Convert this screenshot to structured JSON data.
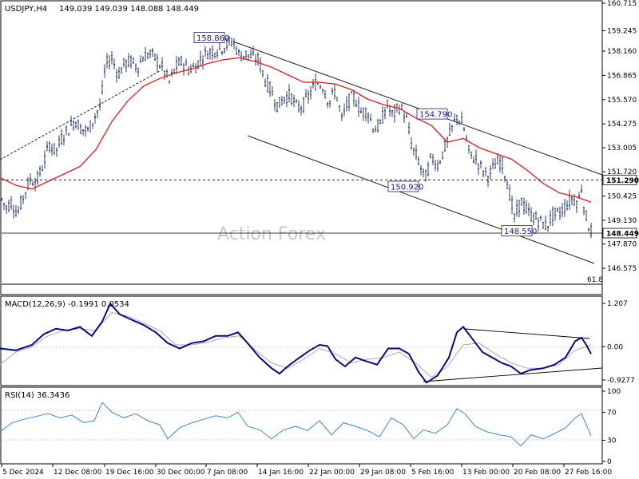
{
  "header": {
    "symbol": "USDJPY,H4",
    "ohlc": "149.039 149.039 148.088 148.449"
  },
  "watermark": "Action Forex",
  "colors": {
    "candle": "#2e3f6e",
    "ma": "#dc1e1e",
    "channel": "#222222",
    "macd": "#0a0a7a",
    "signal": "#a8a8b4",
    "rsi": "#3a86d8",
    "label_bg": "#ffffff",
    "price_tag_bg": "#ffffff"
  },
  "chart_data": [
    {
      "type": "candlestick",
      "title": "USDJPY,H4",
      "ylim": [
        146.575,
        160.715
      ],
      "y_ticks": [
        "160.715",
        "159.245",
        "158.160",
        "156.865",
        "155.570",
        "154.275",
        "153.005",
        "151.720",
        "150.425",
        "149.130",
        "147.870",
        "146.575"
      ],
      "x_ticks": [
        "5 Dec 2024",
        "12 Dec 08:00",
        "19 Dec 16:00",
        "30 Dec 00:00",
        "7 Jan 08:00",
        "14 Jan 16:00",
        "22 Jan 00:00",
        "29 Jan 08:00",
        "5 Feb 16:00",
        "13 Feb 00:00",
        "20 Feb 08:00",
        "27 Feb 16:00"
      ],
      "price_points": [
        [
          0,
          150.4
        ],
        [
          8,
          149.8
        ],
        [
          14,
          150.1
        ],
        [
          22,
          149.5
        ],
        [
          30,
          150.5
        ],
        [
          38,
          151.3
        ],
        [
          46,
          151.2
        ],
        [
          54,
          152.1
        ],
        [
          62,
          153.2
        ],
        [
          70,
          152.8
        ],
        [
          78,
          153.6
        ],
        [
          86,
          154.0
        ],
        [
          94,
          154.5
        ],
        [
          102,
          154.0
        ],
        [
          110,
          153.9
        ],
        [
          118,
          154.6
        ],
        [
          126,
          155.3
        ],
        [
          132,
          157.4
        ],
        [
          140,
          157.8
        ],
        [
          148,
          156.9
        ],
        [
          156,
          157.5
        ],
        [
          164,
          157.6
        ],
        [
          172,
          157.3
        ],
        [
          180,
          157.9
        ],
        [
          188,
          158.0
        ],
        [
          196,
          157.7
        ],
        [
          204,
          157.2
        ],
        [
          212,
          156.5
        ],
        [
          220,
          157.3
        ],
        [
          228,
          157.6
        ],
        [
          236,
          157.2
        ],
        [
          244,
          157.3
        ],
        [
          252,
          157.8
        ],
        [
          260,
          158.1
        ],
        [
          268,
          158.2
        ],
        [
          276,
          158.3
        ],
        [
          284,
          158.5
        ],
        [
          292,
          158.7
        ],
        [
          300,
          157.9
        ],
        [
          308,
          158.0
        ],
        [
          316,
          157.8
        ],
        [
          324,
          157.7
        ],
        [
          332,
          156.6
        ],
        [
          340,
          156.0
        ],
        [
          348,
          155.2
        ],
        [
          356,
          155.7
        ],
        [
          364,
          155.8
        ],
        [
          372,
          155.1
        ],
        [
          380,
          155.3
        ],
        [
          388,
          155.9
        ],
        [
          396,
          156.5
        ],
        [
          404,
          156.3
        ],
        [
          412,
          155.4
        ],
        [
          420,
          156.1
        ],
        [
          428,
          154.5
        ],
        [
          436,
          155.5
        ],
        [
          444,
          155.7
        ],
        [
          452,
          154.9
        ],
        [
          460,
          155.0
        ],
        [
          468,
          154.0
        ],
        [
          476,
          154.2
        ],
        [
          484,
          155.3
        ],
        [
          492,
          154.7
        ],
        [
          500,
          155.2
        ],
        [
          508,
          154.7
        ],
        [
          516,
          153.0
        ],
        [
          524,
          152.3
        ],
        [
          532,
          151.3
        ],
        [
          540,
          152.5
        ],
        [
          548,
          152.1
        ],
        [
          556,
          152.9
        ],
        [
          564,
          153.8
        ],
        [
          572,
          154.7
        ],
        [
          580,
          154.2
        ],
        [
          588,
          152.6
        ],
        [
          596,
          152.4
        ],
        [
          604,
          151.8
        ],
        [
          612,
          151.5
        ],
        [
          620,
          152.1
        ],
        [
          628,
          152.3
        ],
        [
          636,
          151.0
        ],
        [
          644,
          149.2
        ],
        [
          652,
          150.2
        ],
        [
          660,
          149.6
        ],
        [
          668,
          149.3
        ],
        [
          676,
          149.1
        ],
        [
          684,
          148.8
        ],
        [
          692,
          149.4
        ],
        [
          700,
          149.5
        ],
        [
          708,
          149.9
        ],
        [
          716,
          150.3
        ],
        [
          724,
          150.1
        ],
        [
          728,
          150.9
        ],
        [
          732,
          149.6
        ],
        [
          738,
          148.7
        ],
        [
          742,
          148.45
        ]
      ],
      "ma_points": [
        [
          0,
          151.4
        ],
        [
          20,
          151.0
        ],
        [
          40,
          150.8
        ],
        [
          60,
          151.2
        ],
        [
          80,
          151.6
        ],
        [
          100,
          152.0
        ],
        [
          120,
          152.9
        ],
        [
          140,
          154.4
        ],
        [
          160,
          155.5
        ],
        [
          180,
          156.3
        ],
        [
          200,
          156.7
        ],
        [
          220,
          157.0
        ],
        [
          240,
          157.2
        ],
        [
          260,
          157.5
        ],
        [
          280,
          157.7
        ],
        [
          300,
          157.8
        ],
        [
          320,
          157.6
        ],
        [
          340,
          157.3
        ],
        [
          360,
          156.9
        ],
        [
          380,
          156.5
        ],
        [
          400,
          156.5
        ],
        [
          420,
          156.4
        ],
        [
          440,
          156.1
        ],
        [
          460,
          155.6
        ],
        [
          480,
          155.3
        ],
        [
          500,
          155.1
        ],
        [
          520,
          154.6
        ],
        [
          540,
          154.2
        ],
        [
          560,
          153.3
        ],
        [
          580,
          153.5
        ],
        [
          600,
          153.0
        ],
        [
          620,
          152.7
        ],
        [
          640,
          152.4
        ],
        [
          660,
          151.8
        ],
        [
          680,
          151.1
        ],
        [
          700,
          150.6
        ],
        [
          720,
          150.4
        ],
        [
          740,
          150.1
        ]
      ],
      "levels": [
        {
          "label": "151.290",
          "value": 151.29,
          "style": "dashed"
        },
        {
          "label": "148.449",
          "value": 148.449,
          "style": "solid"
        }
      ],
      "fib_label": "61.8",
      "annotations": [
        {
          "label": "158.860",
          "value": 158.86
        },
        {
          "label": "154.790",
          "value": 154.79
        },
        {
          "label": "150.920",
          "value": 150.92
        },
        {
          "label": "148.550",
          "value": 148.55
        }
      ]
    },
    {
      "type": "line",
      "title": "MACD(12,26,9) -0.1991 0.0534",
      "ylim": [
        -0.9277,
        1.207
      ],
      "y_ticks": [
        "1.207",
        "0.00",
        "-0.9277"
      ],
      "macd_points": [
        [
          0,
          -0.05
        ],
        [
          20,
          -0.1
        ],
        [
          40,
          0.05
        ],
        [
          55,
          0.35
        ],
        [
          70,
          0.5
        ],
        [
          85,
          0.45
        ],
        [
          100,
          0.55
        ],
        [
          115,
          0.3
        ],
        [
          128,
          0.7
        ],
        [
          138,
          1.2
        ],
        [
          150,
          0.9
        ],
        [
          165,
          0.75
        ],
        [
          180,
          0.6
        ],
        [
          195,
          0.4
        ],
        [
          210,
          0.1
        ],
        [
          225,
          -0.05
        ],
        [
          240,
          0.1
        ],
        [
          255,
          0.15
        ],
        [
          270,
          0.3
        ],
        [
          285,
          0.3
        ],
        [
          298,
          0.4
        ],
        [
          310,
          0.1
        ],
        [
          325,
          -0.3
        ],
        [
          340,
          -0.6
        ],
        [
          350,
          -0.75
        ],
        [
          360,
          -0.55
        ],
        [
          372,
          -0.35
        ],
        [
          388,
          -0.1
        ],
        [
          400,
          0.05
        ],
        [
          410,
          0.02
        ],
        [
          420,
          -0.35
        ],
        [
          432,
          -0.55
        ],
        [
          445,
          -0.3
        ],
        [
          458,
          -0.4
        ],
        [
          472,
          -0.5
        ],
        [
          486,
          -0.05
        ],
        [
          500,
          -0.05
        ],
        [
          512,
          -0.2
        ],
        [
          524,
          -0.7
        ],
        [
          534,
          -1.0
        ],
        [
          548,
          -0.8
        ],
        [
          562,
          -0.3
        ],
        [
          572,
          0.4
        ],
        [
          580,
          0.55
        ],
        [
          592,
          0.2
        ],
        [
          604,
          -0.15
        ],
        [
          616,
          -0.3
        ],
        [
          628,
          -0.45
        ],
        [
          640,
          -0.55
        ],
        [
          652,
          -0.75
        ],
        [
          664,
          -0.65
        ],
        [
          680,
          -0.6
        ],
        [
          694,
          -0.5
        ],
        [
          708,
          -0.3
        ],
        [
          720,
          0.15
        ],
        [
          728,
          0.25
        ],
        [
          734,
          0.05
        ],
        [
          740,
          -0.2
        ]
      ],
      "signal_points": [
        [
          0,
          -0.5
        ],
        [
          20,
          -0.15
        ],
        [
          40,
          0.0
        ],
        [
          60,
          0.3
        ],
        [
          80,
          0.45
        ],
        [
          100,
          0.5
        ],
        [
          120,
          0.45
        ],
        [
          140,
          0.95
        ],
        [
          160,
          0.85
        ],
        [
          180,
          0.65
        ],
        [
          200,
          0.45
        ],
        [
          220,
          0.05
        ],
        [
          240,
          0.05
        ],
        [
          260,
          0.12
        ],
        [
          280,
          0.25
        ],
        [
          300,
          0.3
        ],
        [
          320,
          -0.1
        ],
        [
          340,
          -0.45
        ],
        [
          360,
          -0.6
        ],
        [
          380,
          -0.35
        ],
        [
          400,
          -0.05
        ],
        [
          420,
          -0.2
        ],
        [
          440,
          -0.45
        ],
        [
          460,
          -0.35
        ],
        [
          480,
          -0.3
        ],
        [
          500,
          -0.15
        ],
        [
          520,
          -0.45
        ],
        [
          540,
          -0.85
        ],
        [
          560,
          -0.55
        ],
        [
          580,
          0.05
        ],
        [
          600,
          0.1
        ],
        [
          620,
          -0.2
        ],
        [
          640,
          -0.45
        ],
        [
          660,
          -0.6
        ],
        [
          680,
          -0.6
        ],
        [
          700,
          -0.5
        ],
        [
          720,
          -0.1
        ],
        [
          740,
          0.05
        ]
      ]
    },
    {
      "type": "line",
      "title": "RSI(14) 36.3436",
      "ylim": [
        0,
        100
      ],
      "y_ticks": [
        "100",
        "70",
        "30",
        "0"
      ],
      "rsi_points": [
        [
          0,
          42
        ],
        [
          15,
          55
        ],
        [
          30,
          60
        ],
        [
          45,
          64
        ],
        [
          60,
          68
        ],
        [
          75,
          62
        ],
        [
          90,
          66
        ],
        [
          105,
          55
        ],
        [
          118,
          58
        ],
        [
          128,
          84
        ],
        [
          140,
          70
        ],
        [
          155,
          62
        ],
        [
          170,
          68
        ],
        [
          185,
          58
        ],
        [
          200,
          52
        ],
        [
          210,
          32
        ],
        [
          225,
          48
        ],
        [
          240,
          55
        ],
        [
          255,
          60
        ],
        [
          270,
          65
        ],
        [
          285,
          62
        ],
        [
          298,
          70
        ],
        [
          310,
          50
        ],
        [
          325,
          45
        ],
        [
          340,
          32
        ],
        [
          355,
          45
        ],
        [
          370,
          50
        ],
        [
          385,
          44
        ],
        [
          400,
          58
        ],
        [
          415,
          38
        ],
        [
          430,
          55
        ],
        [
          445,
          50
        ],
        [
          460,
          44
        ],
        [
          475,
          35
        ],
        [
          490,
          62
        ],
        [
          505,
          52
        ],
        [
          518,
          32
        ],
        [
          530,
          45
        ],
        [
          545,
          40
        ],
        [
          560,
          52
        ],
        [
          572,
          75
        ],
        [
          582,
          68
        ],
        [
          595,
          50
        ],
        [
          610,
          42
        ],
        [
          625,
          38
        ],
        [
          640,
          35
        ],
        [
          652,
          22
        ],
        [
          665,
          38
        ],
        [
          680,
          32
        ],
        [
          695,
          40
        ],
        [
          708,
          48
        ],
        [
          720,
          62
        ],
        [
          728,
          68
        ],
        [
          734,
          52
        ],
        [
          740,
          36
        ]
      ]
    }
  ]
}
